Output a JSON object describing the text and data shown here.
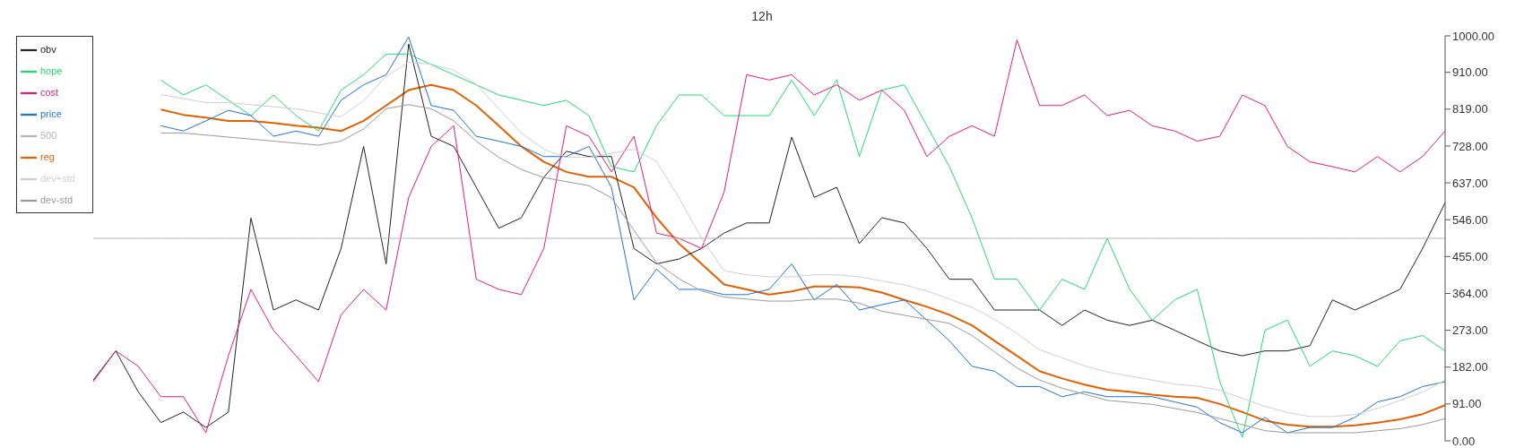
{
  "chart_data": {
    "type": "line",
    "title": "12h",
    "categories": [
      null,
      null,
      null,
      null,
      null,
      null,
      null,
      null,
      null,
      null,
      null,
      null,
      null,
      null,
      null,
      null,
      null,
      null,
      null,
      null,
      null,
      null,
      null,
      null,
      null,
      null,
      null,
      null,
      null,
      null,
      null,
      null,
      null,
      null,
      null,
      null,
      null,
      null,
      null,
      null,
      null,
      null,
      null,
      null,
      null,
      null,
      null,
      null,
      null,
      null,
      null,
      null,
      null,
      null,
      null,
      null,
      null,
      null,
      null,
      null,
      null
    ],
    "series": [
      {
        "name": "obv",
        "color": "#222222",
        "values": [
          150,
          222,
          121,
          45,
          71,
          33,
          71,
          550,
          323,
          348,
          323,
          475,
          727,
          437,
          980,
          752,
          727,
          626,
          525,
          551,
          651,
          715,
          702,
          702,
          475,
          437,
          449,
          475,
          513,
          538,
          538,
          750,
          601,
          626,
          487,
          551,
          538,
          475,
          399,
          399,
          323,
          323,
          323,
          285,
          323,
          298,
          285,
          298,
          273,
          247,
          222,
          210,
          222,
          222,
          235,
          348,
          323,
          348,
          374,
          475,
          588
        ]
      },
      {
        "name": "hope",
        "color": "#1fdc6e",
        "values": [
          null,
          null,
          null,
          891,
          854,
          879,
          841,
          803,
          854,
          803,
          765,
          866,
          904,
          955,
          955,
          929,
          904,
          879,
          854,
          841,
          828,
          841,
          803,
          677,
          664,
          778,
          854,
          854,
          803,
          803,
          803,
          891,
          803,
          891,
          702,
          866,
          879,
          778,
          677,
          551,
          399,
          399,
          323,
          399,
          374,
          500,
          374,
          298,
          348,
          374,
          146,
          8,
          273,
          298,
          184,
          222,
          210,
          184,
          247,
          260,
          222
        ]
      },
      {
        "name": "cost",
        "color": "#e8197d",
        "values": [
          146,
          222,
          184,
          109,
          109,
          20,
          210,
          374,
          273,
          210,
          146,
          311,
          374,
          323,
          601,
          727,
          778,
          399,
          374,
          361,
          475,
          778,
          752,
          664,
          752,
          513,
          500,
          475,
          614,
          904,
          891,
          904,
          854,
          879,
          841,
          866,
          816,
          702,
          752,
          778,
          752,
          990,
          828,
          828,
          854,
          803,
          816,
          778,
          765,
          740,
          752,
          854,
          828,
          727,
          689,
          677,
          664,
          702,
          664,
          702,
          765
        ]
      },
      {
        "name": "price",
        "color": "#1a73d9",
        "values": [
          null,
          null,
          null,
          778,
          765,
          790,
          816,
          803,
          752,
          765,
          752,
          841,
          879,
          904,
          997,
          828,
          816,
          752,
          740,
          727,
          702,
          702,
          727,
          626,
          348,
          424,
          374,
          374,
          361,
          361,
          374,
          437,
          348,
          386,
          323,
          336,
          348,
          298,
          247,
          184,
          172,
          134,
          134,
          109,
          121,
          109,
          109,
          109,
          96,
          83,
          45,
          20,
          58,
          20,
          33,
          33,
          58,
          96,
          109,
          134,
          146
        ]
      },
      {
        "name": "500",
        "color": "#b4b4b4",
        "values": [
          500,
          500,
          500,
          500,
          500,
          500,
          500,
          500,
          500,
          500,
          500,
          500,
          500,
          500,
          500,
          500,
          500,
          500,
          500,
          500,
          500,
          500,
          500,
          500,
          500,
          500,
          500,
          500,
          500,
          500,
          500,
          500,
          500,
          500,
          500,
          500,
          500,
          500,
          500,
          500,
          500,
          500,
          500,
          500,
          500,
          500,
          500,
          500,
          500,
          500,
          500,
          500,
          500,
          500,
          500,
          500,
          500,
          500,
          500,
          500,
          500
        ]
      },
      {
        "name": "reg",
        "color": "#e35f00",
        "values": [
          null,
          null,
          null,
          818,
          805,
          798,
          790,
          790,
          785,
          778,
          773,
          765,
          790,
          828,
          866,
          879,
          866,
          828,
          778,
          727,
          689,
          664,
          652,
          652,
          626,
          551,
          487,
          437,
          386,
          374,
          361,
          369,
          381,
          381,
          379,
          366,
          348,
          331,
          311,
          285,
          247,
          210,
          172,
          154,
          139,
          126,
          121,
          114,
          109,
          106,
          91,
          71,
          50,
          40,
          35,
          35,
          38,
          45,
          53,
          66,
          88
        ]
      },
      {
        "name": "dev+std",
        "color": "#cfcfcf",
        "values": [
          null,
          null,
          null,
          855,
          845,
          835,
          835,
          830,
          825,
          820,
          810,
          800,
          840,
          900,
          935,
          930,
          915,
          880,
          820,
          760,
          720,
          700,
          700,
          710,
          720,
          690,
          600,
          500,
          420,
          410,
          405,
          405,
          410,
          410,
          405,
          395,
          385,
          370,
          350,
          330,
          300,
          265,
          225,
          205,
          185,
          170,
          160,
          150,
          140,
          135,
          125,
          105,
          85,
          70,
          60,
          60,
          65,
          80,
          100,
          120,
          150
        ]
      },
      {
        "name": "dev-std",
        "color": "#999999",
        "values": [
          null,
          null,
          null,
          760,
          760,
          755,
          750,
          745,
          740,
          735,
          730,
          740,
          770,
          820,
          830,
          820,
          790,
          740,
          700,
          670,
          650,
          640,
          630,
          600,
          520,
          440,
          400,
          370,
          355,
          350,
          345,
          345,
          350,
          350,
          340,
          320,
          310,
          300,
          290,
          260,
          220,
          180,
          150,
          130,
          115,
          100,
          95,
          90,
          80,
          70,
          55,
          40,
          25,
          20,
          20,
          20,
          20,
          25,
          30,
          40,
          55
        ]
      }
    ],
    "ylim": [
      0,
      1000
    ],
    "yticks": [
      {
        "value": 0,
        "label": "0.00"
      },
      {
        "value": 91,
        "label": "91.00"
      },
      {
        "value": 182,
        "label": "182.00"
      },
      {
        "value": 273,
        "label": "273.00"
      },
      {
        "value": 364,
        "label": "364.00"
      },
      {
        "value": 455,
        "label": "455.00"
      },
      {
        "value": 546,
        "label": "546.00"
      },
      {
        "value": 637,
        "label": "637.00"
      },
      {
        "value": 728,
        "label": "728.00"
      },
      {
        "value": 819,
        "label": "819.00"
      },
      {
        "value": 910,
        "label": "910.00"
      },
      {
        "value": 1000,
        "label": "1000.00"
      }
    ],
    "tick_labels": "y",
    "grid": false,
    "legend": "top left",
    "marker": "none",
    "line_style": "solid"
  }
}
